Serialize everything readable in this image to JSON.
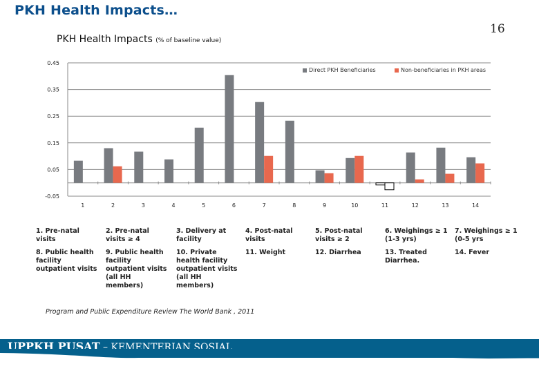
{
  "slide": {
    "title": "PKH Health Impacts…",
    "page_number": "16",
    "source": "Program and Public Expenditure Review The World Bank , 2011",
    "footer_bold": "UPPKH PUSAT",
    "footer_rest": " – KEMENTERIAN SOSIAL",
    "colors": {
      "title": "#0c4f8c",
      "footer": "#05608c"
    }
  },
  "definitions": [
    "1. Pre-natal visits",
    "2. Pre-natal visits ≥ 4",
    "3. Delivery at facility",
    "4. Post-natal visits",
    "5. Post-natal visits ≥ 2",
    "6. Weighings ≥ 1 (1-3 yrs)",
    "7. Weighings ≥ 1 (0-5 yrs",
    "8. Public health facility outpatient visits",
    "9. Public health facility outpatient visits (all HH members)",
    "10. Private health facility outpatient visits (all HH members)",
    "11. Weight",
    "12. Diarrhea",
    "13. Treated Diarrhea.",
    "14. Fever"
  ],
  "chart_data": {
    "type": "bar",
    "title": "PKH Health Impacts",
    "subtitle": "(% of baseline value)",
    "xlabel": "",
    "ylabel": "",
    "categories": [
      "1",
      "2",
      "3",
      "4",
      "5",
      "6",
      "7",
      "8",
      "9",
      "10",
      "11",
      "12",
      "13",
      "14"
    ],
    "ylim": [
      -0.05,
      0.45
    ],
    "yticks": [
      "0.45",
      "0.35",
      "0.25",
      "0.15",
      "0.05",
      "-0.05"
    ],
    "ytick_values": [
      0.45,
      0.35,
      0.25,
      0.15,
      0.05,
      -0.05
    ],
    "grid": true,
    "legend_position": "top-right",
    "series": [
      {
        "name": "Direct PKH Beneficiaries",
        "color": "#787b80",
        "values": [
          0.083,
          0.13,
          0.117,
          0.088,
          0.207,
          0.404,
          0.303,
          0.233,
          0.047,
          0.093,
          -0.008,
          0.114,
          0.132,
          0.096
        ]
      },
      {
        "name": "Non-beneficiaries in PKH areas",
        "color": "#e8684e",
        "values": [
          null,
          0.062,
          null,
          null,
          null,
          null,
          0.101,
          null,
          0.036,
          0.101,
          -0.026,
          0.013,
          0.034,
          0.073
        ]
      }
    ],
    "negative_bar_style": "white-fill-black-outline"
  }
}
